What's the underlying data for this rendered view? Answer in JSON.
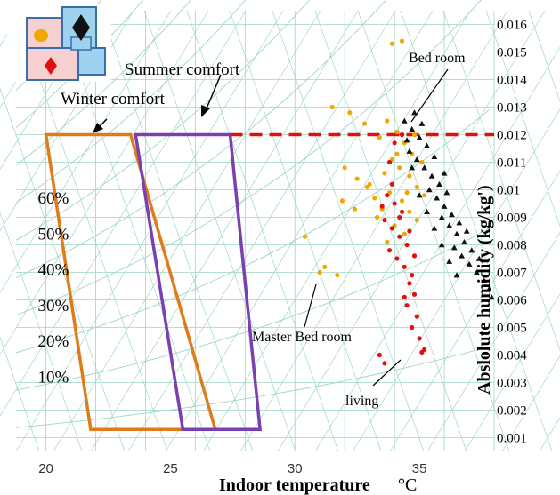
{
  "chart_data": {
    "type": "scatter",
    "title": "",
    "xlabel": "Indoor temperature",
    "xunit": "°C",
    "ylabel": "Abslolute humidity (kg/kg')",
    "xlim": [
      18.8,
      38
    ],
    "ylim": [
      0.0005,
      0.0165
    ],
    "x_ticks": [
      "20",
      "25",
      "30",
      "35"
    ],
    "y_ticks": [
      "0.001",
      "0.002",
      "0.003",
      "0.004",
      "0.005",
      "0.006",
      "0.007",
      "0.008",
      "0.009",
      "0.01",
      "0.011",
      "0.012",
      "0.013",
      "0.014",
      "0.015",
      "0.016"
    ],
    "rh_labels": [
      {
        "label": "60%",
        "x": 20.3,
        "y": 0.0095
      },
      {
        "label": "50%",
        "x": 20.3,
        "y": 0.0082
      },
      {
        "label": "40%",
        "x": 20.3,
        "y": 0.0069
      },
      {
        "label": "30%",
        "x": 20.3,
        "y": 0.0056
      },
      {
        "label": "20%",
        "x": 20.3,
        "y": 0.0043
      },
      {
        "label": "10%",
        "x": 20.3,
        "y": 0.003
      }
    ],
    "comfort_zones": [
      {
        "name": "Winter comfort",
        "color": "#e07b1a",
        "points": [
          [
            20.0,
            0.012
          ],
          [
            23.4,
            0.012
          ],
          [
            26.8,
            0.0013
          ],
          [
            21.8,
            0.0013
          ]
        ]
      },
      {
        "name": "Summer comfort",
        "color": "#7a3fb0",
        "points": [
          [
            23.6,
            0.012
          ],
          [
            27.4,
            0.012
          ],
          [
            28.6,
            0.0013
          ],
          [
            25.5,
            0.0013
          ]
        ]
      }
    ],
    "limit_line": {
      "y": 0.012,
      "x_from": 27.4,
      "x_to": 38,
      "color": "#e01010"
    },
    "annotations": [
      {
        "text": "Summer comfort",
        "x": 25.9,
        "y": 0.0142
      },
      {
        "text": "Winter comfort",
        "x": 23.0,
        "y": 0.013
      },
      {
        "text": "Bed room",
        "x": 36.5,
        "y": 0.0146
      },
      {
        "text": "Master Bed room",
        "x": 32.2,
        "y": 0.0048
      },
      {
        "text": "living",
        "x": 33.7,
        "y": 0.0028
      }
    ],
    "series": [
      {
        "name": "Master Bed room",
        "color": "#f0a800",
        "marker": "circle",
        "points": [
          [
            33.9,
            0.0153
          ],
          [
            34.3,
            0.0154
          ],
          [
            31.5,
            0.013
          ],
          [
            32.2,
            0.0128
          ],
          [
            32.8,
            0.0124
          ],
          [
            33.4,
            0.0119
          ],
          [
            33.7,
            0.0125
          ],
          [
            34.1,
            0.0121
          ],
          [
            34.4,
            0.0117
          ],
          [
            34.7,
            0.0113
          ],
          [
            33.9,
            0.0111
          ],
          [
            34.2,
            0.0108
          ],
          [
            34.6,
            0.0105
          ],
          [
            34.9,
            0.0101
          ],
          [
            33.6,
            0.0106
          ],
          [
            33.8,
            0.0099
          ],
          [
            34.3,
            0.0096
          ],
          [
            34.6,
            0.0092
          ],
          [
            34.9,
            0.0089
          ],
          [
            33.5,
            0.0093
          ],
          [
            34.0,
            0.0087
          ],
          [
            34.4,
            0.0084
          ],
          [
            32.5,
            0.0104
          ],
          [
            32.9,
            0.0101
          ],
          [
            33.2,
            0.0097
          ],
          [
            31.9,
            0.0096
          ],
          [
            32.4,
            0.0093
          ],
          [
            30.4,
            0.0083
          ],
          [
            31.2,
            0.0072
          ],
          [
            31.0,
            0.007
          ],
          [
            31.7,
            0.0069
          ],
          [
            32.0,
            0.0108
          ],
          [
            33.0,
            0.0102
          ],
          [
            34.8,
            0.012
          ],
          [
            35.1,
            0.011
          ],
          [
            35.2,
            0.0098
          ],
          [
            34.1,
            0.0113
          ],
          [
            34.5,
            0.0099
          ],
          [
            33.3,
            0.009
          ],
          [
            33.7,
            0.0081
          ]
        ]
      },
      {
        "name": "living",
        "color": "#e01010",
        "marker": "circle",
        "points": [
          [
            33.7,
            0.0098
          ],
          [
            34.0,
            0.0095
          ],
          [
            34.3,
            0.0092
          ],
          [
            33.6,
            0.0089
          ],
          [
            33.9,
            0.0086
          ],
          [
            34.2,
            0.0083
          ],
          [
            34.5,
            0.008
          ],
          [
            33.8,
            0.0078
          ],
          [
            34.1,
            0.0075
          ],
          [
            34.4,
            0.0072
          ],
          [
            34.7,
            0.0069
          ],
          [
            34.6,
            0.0066
          ],
          [
            34.8,
            0.0062
          ],
          [
            34.5,
            0.0058
          ],
          [
            34.9,
            0.0054
          ],
          [
            34.7,
            0.005
          ],
          [
            35.0,
            0.0046
          ],
          [
            35.2,
            0.0042
          ],
          [
            35.1,
            0.0041
          ],
          [
            33.4,
            0.004
          ],
          [
            33.6,
            0.0037
          ],
          [
            34.4,
            0.0061
          ],
          [
            34.2,
            0.009
          ],
          [
            33.5,
            0.0094
          ],
          [
            34.6,
            0.0085
          ],
          [
            33.8,
            0.011
          ],
          [
            34.0,
            0.0117
          ],
          [
            34.3,
            0.012
          ],
          [
            33.9,
            0.0102
          ],
          [
            34.8,
            0.0076
          ]
        ]
      },
      {
        "name": "Bed room",
        "color": "#111111",
        "marker": "triangle",
        "points": [
          [
            34.4,
            0.0125
          ],
          [
            34.7,
            0.0122
          ],
          [
            35.0,
            0.0119
          ],
          [
            35.3,
            0.0116
          ],
          [
            34.6,
            0.0114
          ],
          [
            34.9,
            0.0111
          ],
          [
            35.2,
            0.0108
          ],
          [
            35.5,
            0.0105
          ],
          [
            35.8,
            0.0102
          ],
          [
            36.1,
            0.0099
          ],
          [
            35.4,
            0.01
          ],
          [
            35.7,
            0.0097
          ],
          [
            36.0,
            0.0094
          ],
          [
            36.3,
            0.0091
          ],
          [
            36.6,
            0.0088
          ],
          [
            36.9,
            0.0085
          ],
          [
            35.9,
            0.009
          ],
          [
            36.2,
            0.0087
          ],
          [
            36.5,
            0.0084
          ],
          [
            36.8,
            0.0081
          ],
          [
            37.1,
            0.0078
          ],
          [
            37.4,
            0.0075
          ],
          [
            36.4,
            0.0079
          ],
          [
            36.7,
            0.0076
          ],
          [
            37.0,
            0.0073
          ],
          [
            37.3,
            0.007
          ],
          [
            37.6,
            0.0067
          ],
          [
            37.8,
            0.0064
          ],
          [
            37.9,
            0.0061
          ],
          [
            34.8,
            0.0128
          ],
          [
            35.1,
            0.0124
          ],
          [
            35.6,
            0.0112
          ],
          [
            36.0,
            0.0106
          ],
          [
            34.5,
            0.0118
          ],
          [
            34.7,
            0.0108
          ],
          [
            35.0,
            0.0098
          ],
          [
            35.3,
            0.0092
          ],
          [
            35.6,
            0.0086
          ],
          [
            35.9,
            0.008
          ],
          [
            36.2,
            0.0074
          ],
          [
            36.5,
            0.0069
          ]
        ]
      }
    ]
  },
  "labels": {
    "summer": "Summer comfort",
    "winter": "Winter comfort",
    "bedroom": "Bed room",
    "master": "Master Bed room",
    "living": "living",
    "xlabel": "Indoor temperature",
    "xunit": "°C",
    "ylabel": "Abslolute humidity (kg/kg')"
  },
  "colors": {
    "grid": "#9fd6c4",
    "background": "#ffffff",
    "winter": "#e07b1a",
    "summer": "#7a3fb0",
    "limit": "#e01010"
  },
  "inset_icons": [
    "floor-plan-icon"
  ]
}
